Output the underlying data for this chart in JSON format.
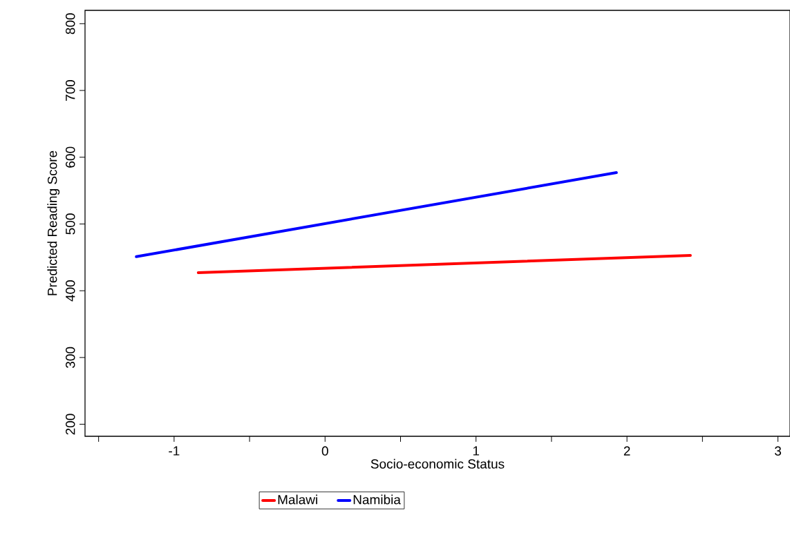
{
  "chart_data": {
    "type": "line",
    "xlabel": "Socio-economic Status",
    "ylabel": "Predicted Reading Score",
    "xlim": [
      -1.59,
      3.08
    ],
    "ylim": [
      182,
      820
    ],
    "xticks": [
      {
        "value": -1.5,
        "label": null
      },
      -1,
      {
        "value": -0.5,
        "label": null
      },
      0,
      {
        "value": 0.5,
        "label": null
      },
      1,
      {
        "value": 1.5,
        "label": null
      },
      2,
      {
        "value": 2.5,
        "label": null
      },
      3
    ],
    "yticks": [
      200,
      300,
      400,
      500,
      600,
      700,
      800
    ],
    "grid": false,
    "legend": "bottom",
    "marker": "none",
    "line_style": "solid",
    "series": [
      {
        "name": "Malawi",
        "color": "#ff0000",
        "x": [
          -0.84,
          2.42
        ],
        "values": [
          427,
          453
        ]
      },
      {
        "name": "Namibia",
        "color": "#0000ff",
        "x": [
          -1.25,
          1.93
        ],
        "values": [
          451,
          577
        ]
      }
    ]
  }
}
